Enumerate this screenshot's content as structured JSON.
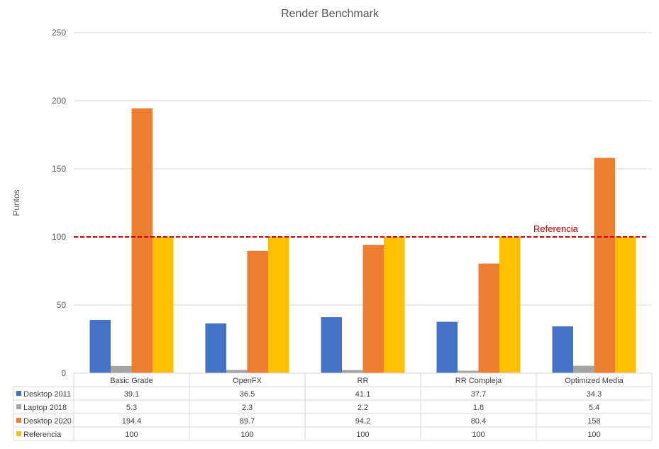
{
  "chart_data": {
    "type": "bar",
    "title": "Render Benchmark",
    "xlabel": "",
    "ylabel": "Puntos",
    "ylim": [
      0,
      250
    ],
    "yticks": [
      0,
      50,
      100,
      150,
      200,
      250
    ],
    "grid": true,
    "categories": [
      "Basic Grade",
      "OpenFX",
      "RR",
      "RR Compleja",
      "Optimized Media"
    ],
    "series": [
      {
        "name": "Desktop 2011",
        "values": [
          39.1,
          36.5,
          41.1,
          37.7,
          34.3
        ],
        "color": "#4472c4"
      },
      {
        "name": "Laptop 2018",
        "values": [
          5.3,
          2.3,
          2.2,
          1.8,
          5.4
        ],
        "color": "#a5a5a5"
      },
      {
        "name": "Desktop 2020",
        "values": [
          194.4,
          89.7,
          94.2,
          80.4,
          158
        ],
        "color": "#ed7d31"
      },
      {
        "name": "Referencia",
        "values": [
          100,
          100,
          100,
          100,
          100
        ],
        "color": "#ffc000"
      }
    ],
    "reference_line": {
      "label": "Referencia",
      "value": 100,
      "color": "#c00000"
    },
    "data_table": true
  }
}
